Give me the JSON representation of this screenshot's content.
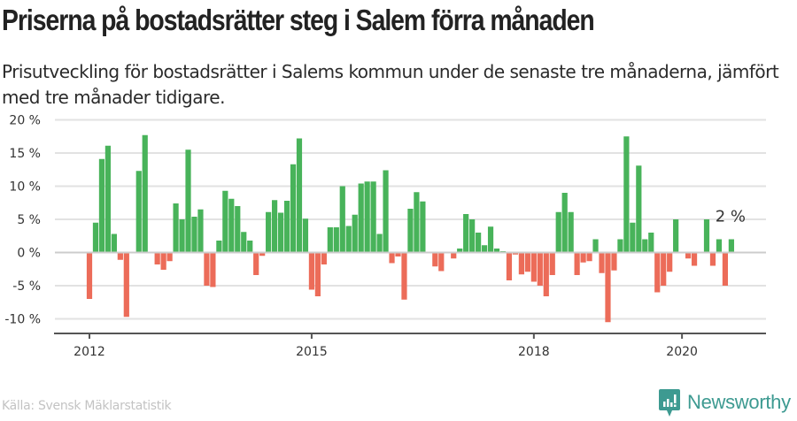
{
  "header": {
    "title": "Priserna på bostadsrätter steg i Salem förra månaden",
    "subtitle": "Prisutveckling för bostadsrätter i Salems kommun under de senaste tre månaderna, jämfört med tre månader tidigare."
  },
  "footer": {
    "source": "Källa: Svensk Mäklarstatistik",
    "brand": "Newsworthy",
    "brand_color": "#3d9a91"
  },
  "colors": {
    "positive": "#48b35a",
    "negative": "#ec6c59",
    "grid": "#e2e2e2",
    "axis": "#555555"
  },
  "chart_data": {
    "type": "bar",
    "title": "Priserna på bostadsrätter steg i Salem förra månaden",
    "xlabel": "",
    "ylabel": "",
    "unit": "%",
    "ylim": [
      -12,
      20
    ],
    "yticks": [
      20,
      15,
      10,
      5,
      0,
      -5,
      -10
    ],
    "ytick_labels": [
      "20 %",
      "15 %",
      "10 %",
      "5 %",
      "0 %",
      "-5 %",
      "-10 %"
    ],
    "xticks": [
      {
        "label": "2012",
        "month_index": 0
      },
      {
        "label": "2015",
        "month_index": 36
      },
      {
        "label": "2018",
        "month_index": 72
      },
      {
        "label": "2020",
        "month_index": 96
      }
    ],
    "grid": true,
    "start": "2012-01",
    "frequency": "monthly",
    "annotation": {
      "text": "2 %",
      "month_index": 104
    },
    "values": [
      -7.0,
      4.5,
      14.1,
      16.1,
      2.8,
      -1.1,
      -9.7,
      0,
      12.3,
      17.7,
      0,
      -1.8,
      -2.6,
      -1.3,
      7.4,
      5.0,
      15.5,
      5.4,
      6.5,
      -5.0,
      -5.2,
      1.8,
      9.3,
      8.1,
      7.0,
      3.1,
      1.8,
      -3.4,
      -0.5,
      6.1,
      7.9,
      6.0,
      7.8,
      13.3,
      17.2,
      5.1,
      -5.6,
      -6.6,
      -1.8,
      3.8,
      3.8,
      10.0,
      4.0,
      5.7,
      10.4,
      10.7,
      10.7,
      2.8,
      12.4,
      -1.6,
      -0.6,
      -7.1,
      6.6,
      9.1,
      7.7,
      0,
      -2.1,
      -2.8,
      0,
      -0.9,
      0.6,
      5.8,
      5.0,
      3.0,
      1.1,
      3.9,
      0.6,
      0.2,
      -4.2,
      -0.3,
      -3.3,
      -2.9,
      -4.4,
      -5.0,
      -6.6,
      -3.4,
      6.1,
      9.0,
      6.1,
      -3.4,
      -1.5,
      -1.3,
      2.0,
      -3.1,
      -10.5,
      -2.7,
      2.0,
      17.5,
      4.5,
      13.1,
      2.0,
      3.0,
      -6.0,
      -5.0,
      -2.9,
      5.0,
      0,
      -0.9,
      -2.0,
      0,
      5.0,
      -2.0,
      2.0,
      -5.0,
      2.0
    ]
  }
}
